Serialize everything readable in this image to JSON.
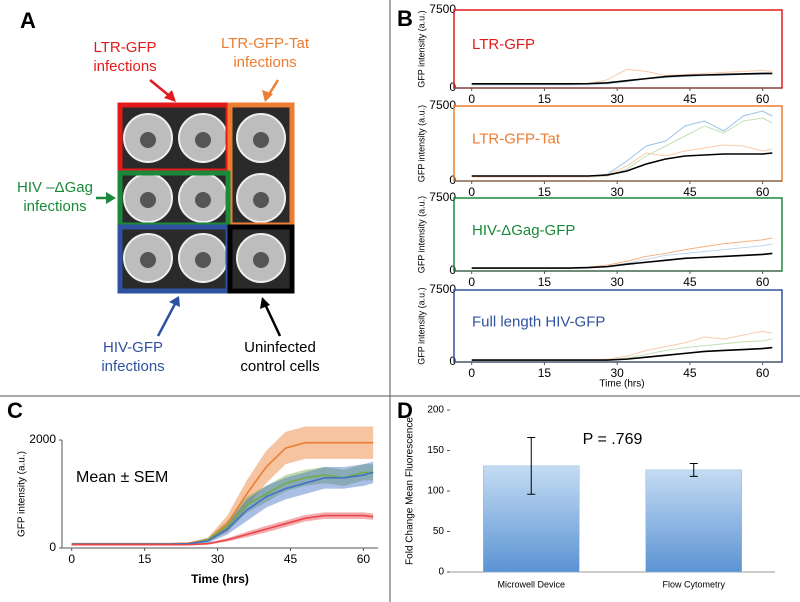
{
  "panel_labels": [
    "A",
    "B",
    "C",
    "D"
  ],
  "panel_a": {
    "labels": [
      {
        "lines": [
          "LTR-GFP",
          "infections"
        ],
        "color": "#e31a1c"
      },
      {
        "lines": [
          "LTR-GFP-Tat",
          "infections"
        ],
        "color": "#ed7d31"
      },
      {
        "lines": [
          "HIV –ΔGag",
          "infections"
        ],
        "color": "#1a8a3a"
      },
      {
        "lines": [
          "HIV-GFP",
          "infections"
        ],
        "color": "#2f52a0"
      },
      {
        "lines": [
          "Uninfected",
          "control cells"
        ],
        "color": "#000000"
      }
    ]
  },
  "chart_data": [
    {
      "type": "line",
      "label": "LTR-GFP",
      "frame_color": "#e31a1c",
      "ylabel": "GFP intensity (a.u.)",
      "x": [
        0,
        4,
        8,
        12,
        16,
        20,
        24,
        28,
        32,
        36,
        40,
        44,
        48,
        52,
        56,
        60,
        62
      ],
      "xlim": [
        -2,
        64
      ],
      "xticks": [
        0,
        15,
        30,
        45,
        60
      ],
      "ylim": [
        0,
        7500
      ],
      "yticks": [
        0,
        7500
      ],
      "series": [
        {
          "color": "#f8cbad",
          "values": [
            300,
            300,
            300,
            300,
            300,
            300,
            400,
            800,
            1800,
            1600,
            1200,
            1300,
            1400,
            1500,
            1600,
            1700,
            1600
          ]
        },
        {
          "color": "#bdd7ee",
          "values": [
            300,
            300,
            300,
            300,
            300,
            300,
            300,
            400,
            600,
            900,
            1000,
            1100,
            1200,
            1200,
            1300,
            1300,
            1350
          ]
        },
        {
          "color": "#000000",
          "values": [
            400,
            400,
            400,
            400,
            400,
            400,
            420,
            500,
            700,
            900,
            1100,
            1200,
            1250,
            1300,
            1350,
            1400,
            1400
          ]
        }
      ]
    },
    {
      "type": "line",
      "label": "LTR-GFP-Tat",
      "frame_color": "#ed7d31",
      "ylabel": "GFP intensity (a.u.)",
      "x": [
        0,
        4,
        8,
        12,
        16,
        20,
        24,
        28,
        32,
        36,
        40,
        44,
        48,
        52,
        56,
        60,
        62
      ],
      "xlim": [
        -2,
        64
      ],
      "xticks": [
        0,
        15,
        30,
        45,
        60
      ],
      "ylim": [
        0,
        7500
      ],
      "yticks": [
        0,
        7500
      ],
      "series": [
        {
          "color": "#9dc3e6",
          "values": [
            400,
            400,
            400,
            400,
            400,
            400,
            400,
            700,
            2000,
            3500,
            4000,
            5500,
            6000,
            5000,
            6500,
            7000,
            6500
          ]
        },
        {
          "color": "#c5e0b4",
          "values": [
            400,
            400,
            400,
            400,
            400,
            400,
            400,
            500,
            1200,
            2500,
            3500,
            4500,
            5500,
            4800,
            6000,
            6300,
            5800
          ]
        },
        {
          "color": "#f8cbad",
          "values": [
            400,
            400,
            400,
            400,
            400,
            400,
            400,
            600,
            1500,
            2800,
            2500,
            3000,
            3300,
            3600,
            3500,
            3000,
            3200
          ]
        },
        {
          "color": "#000000",
          "values": [
            500,
            500,
            500,
            500,
            500,
            500,
            500,
            600,
            1000,
            1700,
            2200,
            2500,
            2600,
            2700,
            2700,
            2700,
            2800
          ]
        }
      ]
    },
    {
      "type": "line",
      "label": "HIV-ΔGag-GFP",
      "frame_color": "#1a8a3a",
      "ylabel": "GFP intensity (a.u.)",
      "x": [
        0,
        4,
        8,
        12,
        16,
        20,
        24,
        28,
        32,
        36,
        40,
        44,
        48,
        52,
        56,
        60,
        62
      ],
      "xlim": [
        -2,
        64
      ],
      "xticks": [
        0,
        15,
        30,
        45,
        60
      ],
      "ylim": [
        0,
        7500
      ],
      "yticks": [
        0,
        7500
      ],
      "series": [
        {
          "color": "#f4b183",
          "values": [
            300,
            300,
            300,
            300,
            300,
            300,
            400,
            600,
            1000,
            1500,
            1800,
            2200,
            2500,
            2800,
            3000,
            3200,
            3400
          ]
        },
        {
          "color": "#bdd7ee",
          "values": [
            300,
            300,
            300,
            300,
            300,
            300,
            300,
            500,
            800,
            1200,
            1600,
            1800,
            2000,
            2200,
            2400,
            2600,
            2800
          ]
        },
        {
          "color": "#000000",
          "values": [
            300,
            300,
            300,
            300,
            300,
            300,
            350,
            450,
            700,
            900,
            1100,
            1300,
            1400,
            1500,
            1600,
            1700,
            1800
          ]
        }
      ]
    },
    {
      "type": "line",
      "label": "Full length HIV-GFP",
      "frame_color": "#2f52a0",
      "ylabel": "GFP intensity (a.u.)",
      "xlabel": "Time (hrs)",
      "x": [
        0,
        4,
        8,
        12,
        16,
        20,
        24,
        28,
        32,
        36,
        40,
        44,
        48,
        52,
        56,
        60,
        62
      ],
      "xlim": [
        -2,
        64
      ],
      "xticks": [
        0,
        15,
        30,
        45,
        60
      ],
      "ylim": [
        0,
        7500
      ],
      "yticks": [
        0,
        7500
      ],
      "series": [
        {
          "color": "#f8cbad",
          "values": [
            200,
            200,
            200,
            200,
            200,
            200,
            200,
            300,
            600,
            1200,
            1600,
            2000,
            2600,
            2400,
            2800,
            3200,
            3000
          ]
        },
        {
          "color": "#c5e0b4",
          "values": [
            200,
            200,
            200,
            200,
            200,
            200,
            200,
            200,
            400,
            800,
            1200,
            1500,
            1700,
            1900,
            2100,
            2200,
            2400
          ]
        },
        {
          "color": "#000000",
          "values": [
            200,
            200,
            200,
            200,
            200,
            200,
            200,
            200,
            300,
            500,
            700,
            900,
            1100,
            1200,
            1300,
            1400,
            1500
          ]
        }
      ]
    },
    {
      "type": "band",
      "annotation": "Mean ± SEM",
      "ylabel": "GFP intensity (a.u.)",
      "xlabel": "Time (hrs)",
      "x": [
        0,
        4,
        8,
        12,
        16,
        20,
        24,
        28,
        32,
        36,
        40,
        44,
        48,
        52,
        56,
        60,
        62
      ],
      "xlim": [
        -2,
        63
      ],
      "xticks": [
        0,
        15,
        30,
        45,
        60
      ],
      "ylim": [
        0,
        2000
      ],
      "yticks": [
        0,
        2000
      ],
      "series": [
        {
          "color": "#ed7d31",
          "values": [
            80,
            80,
            80,
            80,
            80,
            80,
            90,
            150,
            450,
            1000,
            1500,
            1850,
            1950,
            1950,
            1950,
            1950,
            1950
          ],
          "errors": [
            10,
            10,
            10,
            10,
            10,
            10,
            15,
            40,
            150,
            250,
            300,
            300,
            300,
            300,
            300,
            300,
            300
          ]
        },
        {
          "color": "#70ad47",
          "values": [
            60,
            60,
            60,
            60,
            60,
            60,
            70,
            150,
            400,
            800,
            1000,
            1200,
            1300,
            1350,
            1300,
            1400,
            1400
          ],
          "errors": [
            10,
            10,
            10,
            10,
            10,
            10,
            20,
            40,
            100,
            150,
            150,
            150,
            150,
            150,
            150,
            150,
            150
          ]
        },
        {
          "color": "#4472c4",
          "values": [
            70,
            70,
            70,
            70,
            70,
            70,
            80,
            130,
            350,
            700,
            950,
            1100,
            1200,
            1300,
            1300,
            1350,
            1400
          ],
          "errors": [
            10,
            10,
            10,
            10,
            10,
            10,
            20,
            40,
            100,
            200,
            200,
            200,
            200,
            200,
            200,
            200,
            200
          ]
        },
        {
          "color": "#e8474b",
          "values": [
            60,
            60,
            60,
            60,
            60,
            60,
            60,
            80,
            150,
            250,
            350,
            450,
            550,
            600,
            600,
            600,
            580
          ],
          "errors": [
            10,
            10,
            10,
            10,
            10,
            10,
            10,
            20,
            30,
            50,
            60,
            60,
            60,
            60,
            60,
            60,
            60
          ]
        }
      ]
    },
    {
      "type": "bar",
      "annotation": "P = .769",
      "ylabel": "Fold Change Mean Fluorescence",
      "categories": [
        "Microwell Device",
        "Flow Cytometry"
      ],
      "values": [
        131,
        126
      ],
      "errors": [
        35,
        8
      ],
      "color": "#8fb8e3",
      "ylim": [
        0,
        200
      ],
      "yticks": [
        0,
        50,
        100,
        150,
        200
      ],
      "grid": false
    }
  ]
}
